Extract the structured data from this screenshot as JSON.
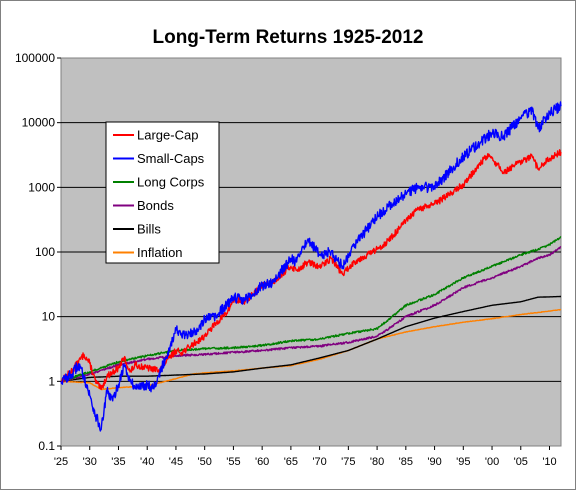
{
  "chart_data": {
    "type": "line",
    "title": "Long-Term Returns 1925-2012",
    "xlabel": "",
    "ylabel": "",
    "x_range": [
      1925,
      2012
    ],
    "y_range": [
      0.1,
      100000
    ],
    "y_scale": "log",
    "y_ticks": [
      "0.1",
      "1",
      "10",
      "100",
      "1000",
      "10000",
      "100000"
    ],
    "x_ticks": [
      "'25",
      "'30",
      "'35",
      "'40",
      "'45",
      "'50",
      "'55",
      "'60",
      "'65",
      "'70",
      "'75",
      "'80",
      "'85",
      "'90",
      "'95",
      "'00",
      "'05",
      "'10"
    ],
    "grid": "horizontal",
    "plot_background": "#c0c0c0",
    "legend_position": "upper-left inside plot",
    "series": [
      {
        "name": "Large-Cap",
        "color": "#ff0000",
        "points": [
          [
            1925,
            1.0
          ],
          [
            1927,
            1.5
          ],
          [
            1929,
            2.6
          ],
          [
            1930,
            1.9
          ],
          [
            1931,
            1.0
          ],
          [
            1932,
            0.75
          ],
          [
            1933,
            1.2
          ],
          [
            1935,
            1.6
          ],
          [
            1936,
            2.3
          ],
          [
            1937,
            1.4
          ],
          [
            1938,
            1.8
          ],
          [
            1940,
            1.6
          ],
          [
            1942,
            1.5
          ],
          [
            1945,
            3.0
          ],
          [
            1946,
            2.8
          ],
          [
            1950,
            5.0
          ],
          [
            1952,
            8.0
          ],
          [
            1954,
            12.0
          ],
          [
            1955,
            18.0
          ],
          [
            1957,
            17.0
          ],
          [
            1960,
            30.0
          ],
          [
            1962,
            35.0
          ],
          [
            1965,
            60.0
          ],
          [
            1966,
            52.0
          ],
          [
            1968,
            70.0
          ],
          [
            1970,
            58.0
          ],
          [
            1972,
            80.0
          ],
          [
            1974,
            45.0
          ],
          [
            1976,
            70.0
          ],
          [
            1980,
            110.0
          ],
          [
            1982,
            150.0
          ],
          [
            1985,
            300.0
          ],
          [
            1987,
            450.0
          ],
          [
            1990,
            550.0
          ],
          [
            1995,
            1100.0
          ],
          [
            1999,
            3000.0
          ],
          [
            2000,
            2800.0
          ],
          [
            2002,
            1700.0
          ],
          [
            2004,
            2200.0
          ],
          [
            2007,
            3000.0
          ],
          [
            2008,
            1900.0
          ],
          [
            2010,
            2800.0
          ],
          [
            2012,
            3500.0
          ]
        ]
      },
      {
        "name": "Small-Caps",
        "color": "#0000ff",
        "points": [
          [
            1925,
            1.0
          ],
          [
            1927,
            1.3
          ],
          [
            1928,
            1.8
          ],
          [
            1929,
            1.2
          ],
          [
            1930,
            0.6
          ],
          [
            1931,
            0.3
          ],
          [
            1932,
            0.18
          ],
          [
            1933,
            0.7
          ],
          [
            1934,
            0.5
          ],
          [
            1935,
            0.9
          ],
          [
            1936,
            1.8
          ],
          [
            1937,
            1.0
          ],
          [
            1938,
            0.8
          ],
          [
            1940,
            0.9
          ],
          [
            1941,
            0.8
          ],
          [
            1942,
            1.2
          ],
          [
            1944,
            3.5
          ],
          [
            1945,
            6.5
          ],
          [
            1946,
            5.0
          ],
          [
            1948,
            5.5
          ],
          [
            1950,
            9.0
          ],
          [
            1952,
            10.0
          ],
          [
            1955,
            20.0
          ],
          [
            1957,
            18.0
          ],
          [
            1960,
            30.0
          ],
          [
            1962,
            35.0
          ],
          [
            1965,
            80.0
          ],
          [
            1966,
            70.0
          ],
          [
            1968,
            160.0
          ],
          [
            1970,
            90.0
          ],
          [
            1972,
            100.0
          ],
          [
            1974,
            60.0
          ],
          [
            1976,
            130.0
          ],
          [
            1980,
            350.0
          ],
          [
            1982,
            500.0
          ],
          [
            1984,
            700.0
          ],
          [
            1987,
            1000.0
          ],
          [
            1990,
            1000.0
          ],
          [
            1995,
            3000.0
          ],
          [
            1998,
            5000.0
          ],
          [
            2000,
            7000.0
          ],
          [
            2002,
            6000.0
          ],
          [
            2005,
            12000.0
          ],
          [
            2007,
            15000.0
          ],
          [
            2008,
            8000.0
          ],
          [
            2010,
            14000.0
          ],
          [
            2012,
            18000.0
          ]
        ]
      },
      {
        "name": "Long Corps",
        "color": "#008000",
        "points": [
          [
            1925,
            1.0
          ],
          [
            1930,
            1.4
          ],
          [
            1935,
            2.0
          ],
          [
            1940,
            2.5
          ],
          [
            1945,
            3.0
          ],
          [
            1950,
            3.2
          ],
          [
            1955,
            3.3
          ],
          [
            1960,
            3.6
          ],
          [
            1965,
            4.2
          ],
          [
            1970,
            4.5
          ],
          [
            1975,
            5.5
          ],
          [
            1980,
            6.5
          ],
          [
            1982,
            9.0
          ],
          [
            1985,
            15.0
          ],
          [
            1990,
            22.0
          ],
          [
            1995,
            40.0
          ],
          [
            2000,
            60.0
          ],
          [
            2005,
            90.0
          ],
          [
            2008,
            110.0
          ],
          [
            2010,
            130.0
          ],
          [
            2012,
            170.0
          ]
        ]
      },
      {
        "name": "Bonds",
        "color": "#800080",
        "points": [
          [
            1925,
            1.0
          ],
          [
            1930,
            1.3
          ],
          [
            1935,
            1.8
          ],
          [
            1940,
            2.2
          ],
          [
            1945,
            2.5
          ],
          [
            1950,
            2.6
          ],
          [
            1955,
            2.8
          ],
          [
            1960,
            3.0
          ],
          [
            1965,
            3.3
          ],
          [
            1970,
            3.5
          ],
          [
            1975,
            4.0
          ],
          [
            1980,
            5.0
          ],
          [
            1982,
            6.5
          ],
          [
            1985,
            10.0
          ],
          [
            1990,
            15.0
          ],
          [
            1995,
            28.0
          ],
          [
            2000,
            40.0
          ],
          [
            2005,
            60.0
          ],
          [
            2008,
            80.0
          ],
          [
            2010,
            90.0
          ],
          [
            2012,
            120.0
          ]
        ]
      },
      {
        "name": "Bills",
        "color": "#000000",
        "points": [
          [
            1925,
            1.0
          ],
          [
            1930,
            1.15
          ],
          [
            1935,
            1.2
          ],
          [
            1940,
            1.2
          ],
          [
            1945,
            1.25
          ],
          [
            1950,
            1.3
          ],
          [
            1955,
            1.4
          ],
          [
            1960,
            1.6
          ],
          [
            1965,
            1.8
          ],
          [
            1970,
            2.3
          ],
          [
            1975,
            3.0
          ],
          [
            1980,
            4.5
          ],
          [
            1985,
            7.0
          ],
          [
            1990,
            9.5
          ],
          [
            1995,
            12.0
          ],
          [
            2000,
            15.0
          ],
          [
            2005,
            17.0
          ],
          [
            2008,
            20.0
          ],
          [
            2012,
            20.5
          ]
        ]
      },
      {
        "name": "Inflation",
        "color": "#ff8000",
        "points": [
          [
            1925,
            1.0
          ],
          [
            1930,
            0.95
          ],
          [
            1932,
            0.75
          ],
          [
            1935,
            0.8
          ],
          [
            1940,
            0.85
          ],
          [
            1945,
            1.1
          ],
          [
            1948,
            1.3
          ],
          [
            1950,
            1.35
          ],
          [
            1955,
            1.45
          ],
          [
            1960,
            1.6
          ],
          [
            1965,
            1.75
          ],
          [
            1970,
            2.2
          ],
          [
            1975,
            3.0
          ],
          [
            1980,
            4.5
          ],
          [
            1985,
            5.8
          ],
          [
            1990,
            7.0
          ],
          [
            1995,
            8.2
          ],
          [
            2000,
            9.3
          ],
          [
            2005,
            10.8
          ],
          [
            2010,
            12.2
          ],
          [
            2012,
            12.8
          ]
        ]
      }
    ]
  }
}
